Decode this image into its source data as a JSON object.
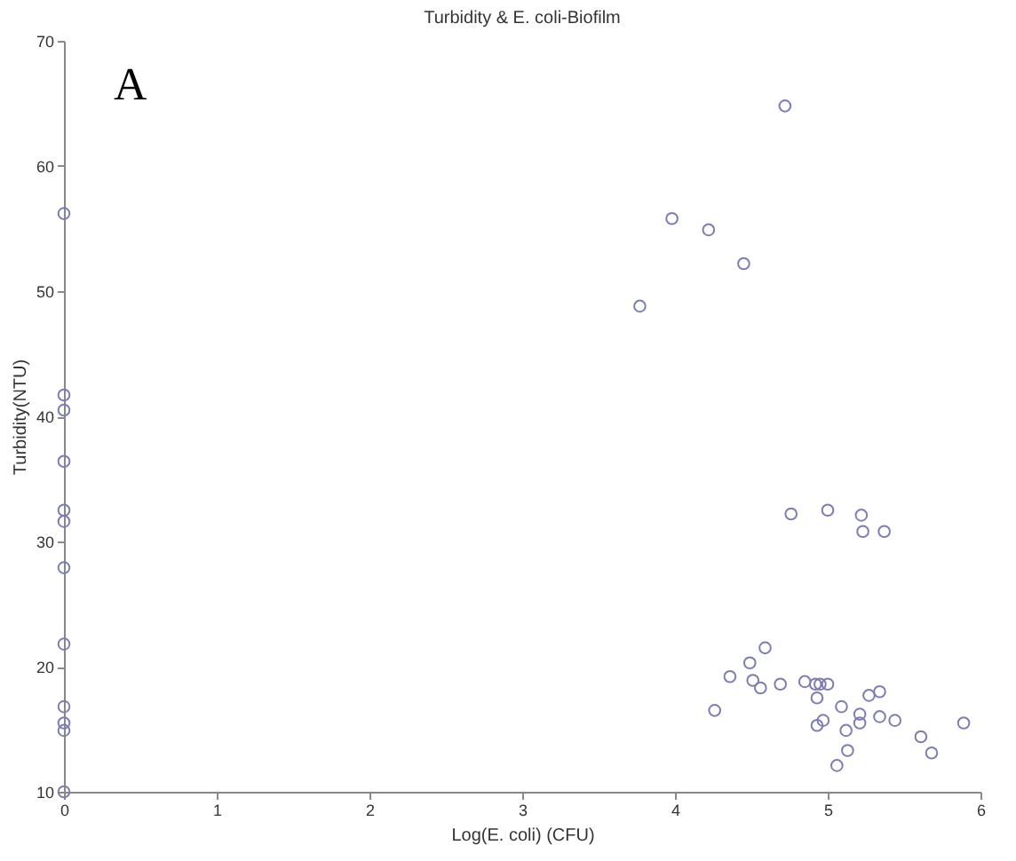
{
  "chart_data": {
    "type": "scatter",
    "title": "Turbidity & E. coli-Biofilm",
    "xlabel": "Log(E. coli) (CFU)",
    "ylabel": "Turbidity(NTU)",
    "annotations": [
      "A"
    ],
    "x": [
      0,
      0,
      0,
      0,
      0,
      0,
      0,
      0,
      0,
      0,
      0,
      0,
      4.72,
      3.98,
      4.22,
      4.45,
      3.77,
      4.76,
      5.0,
      5.22,
      5.23,
      5.37,
      4.59,
      4.49,
      4.36,
      4.51,
      4.56,
      4.69,
      4.85,
      4.92,
      4.95,
      5.0,
      4.93,
      4.26,
      5.09,
      5.27,
      5.34,
      5.21,
      5.21,
      4.93,
      4.97,
      5.34,
      5.44,
      5.12,
      5.13,
      5.06,
      5.61,
      5.68,
      5.89
    ],
    "series": [
      {
        "color": "#7d7db5",
        "values": [
          56.2,
          41.7,
          40.5,
          36.4,
          32.5,
          31.6,
          27.9,
          21.8,
          16.8,
          15.5,
          14.9,
          10,
          64.8,
          55.8,
          54.9,
          52.2,
          48.8,
          32.2,
          32.5,
          32.1,
          30.8,
          30.8,
          21.5,
          20.3,
          19.2,
          18.9,
          18.3,
          18.6,
          18.8,
          18.6,
          18.6,
          18.6,
          17.5,
          16.5,
          16.8,
          17.7,
          18.0,
          16.2,
          15.5,
          15.3,
          15.7,
          16.0,
          15.7,
          14.9,
          13.3,
          12.1,
          14.4,
          13.1,
          15.5
        ]
      }
    ],
    "marker": "circle",
    "grid": false,
    "xlim": [
      0,
      6
    ],
    "xticks": [
      0,
      1,
      2,
      3,
      4,
      5,
      6
    ],
    "ylim": [
      10,
      70
    ],
    "yticks": [
      10,
      20,
      30,
      40,
      50,
      60,
      70
    ]
  }
}
